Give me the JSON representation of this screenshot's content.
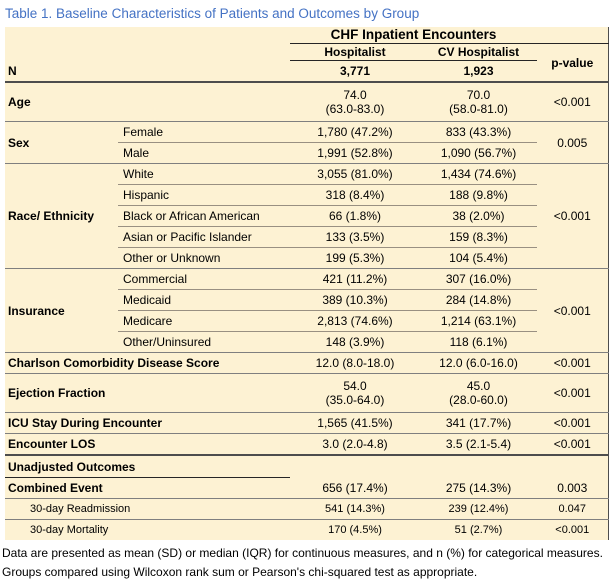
{
  "title": "Table 1. Baseline Characteristics of Patients and Outcomes by Group",
  "colors": {
    "title_blue": "#4472C4",
    "table_background": "#FDF2D3",
    "rule_gray": "#7f7f7f",
    "rule_dark": "#262626"
  },
  "footnote": "Data are presented as mean (SD) or median (IQR) for continuous measures, and n (%) for categorical measures. Groups compared using Wilcoxon rank sum or Pearson's chi-squared test as appropriate.",
  "table": {
    "column_group_header": "CHF Inpatient Encounters",
    "columns": [
      "Hospitalist",
      "CV Hospitalist",
      "p-value"
    ],
    "rows": [
      {
        "cls": "hrow",
        "cells": [
          {
            "t": "",
            "cs": 2,
            "c": "nb"
          },
          {
            "t": "CHF Inpatient Encounters",
            "cs": 2,
            "c": "chf bd"
          },
          {
            "t": "",
            "c": "bd"
          }
        ]
      },
      {
        "cls": "hrow",
        "cells": [
          {
            "t": "",
            "cs": 2,
            "c": "nb"
          },
          {
            "t": "Hospitalist",
            "c": "hdr bd"
          },
          {
            "t": "CV Hospitalist",
            "c": "hdr bd"
          },
          {
            "t": "p-value",
            "rs": 2,
            "c": "hdr b2"
          }
        ]
      },
      {
        "cells": [
          {
            "t": "N",
            "cs": 2,
            "c": "lbl b2"
          },
          {
            "t": "3,771",
            "c": "val bold b2"
          },
          {
            "t": "1,923",
            "c": "val bold b2"
          }
        ]
      },
      {
        "cls": "tall",
        "cells": [
          {
            "t": "Age",
            "cs": 2,
            "c": "lbl b1"
          },
          {
            "t": "74.0\n(63.0-83.0)",
            "c": "val b1"
          },
          {
            "t": "70.0\n(58.0-81.0)",
            "c": "val b1"
          },
          {
            "t": "<0.001",
            "c": "pv b1"
          }
        ]
      },
      {
        "cells": [
          {
            "t": "Sex",
            "rs": 2,
            "c": "lbl b1"
          },
          {
            "t": "Female",
            "c": "sub bt"
          },
          {
            "t": "1,780 (47.2%)",
            "c": "val bt"
          },
          {
            "t": "833 (43.3%)",
            "c": "val bt"
          },
          {
            "t": "0.005",
            "rs": 2,
            "c": "pv b1"
          }
        ]
      },
      {
        "cells": [
          {
            "t": "Male",
            "c": "sub b1"
          },
          {
            "t": "1,991 (52.8%)",
            "c": "val b1"
          },
          {
            "t": "1,090 (56.7%)",
            "c": "val b1"
          }
        ]
      },
      {
        "cells": [
          {
            "t": "Race/ Ethnicity",
            "rs": 5,
            "c": "lbl b1"
          },
          {
            "t": "White",
            "c": "sub bt"
          },
          {
            "t": "3,055 (81.0%)",
            "c": "val bt"
          },
          {
            "t": "1,434 (74.6%)",
            "c": "val bt"
          },
          {
            "t": "<0.001",
            "rs": 5,
            "c": "pv b1"
          }
        ]
      },
      {
        "cells": [
          {
            "t": "Hispanic",
            "c": "sub bt"
          },
          {
            "t": "318 (8.4%)",
            "c": "val bt"
          },
          {
            "t": "188 (9.8%)",
            "c": "val bt"
          }
        ]
      },
      {
        "cells": [
          {
            "t": "Black or African American",
            "c": "sub bt"
          },
          {
            "t": "66 (1.8%)",
            "c": "val bt"
          },
          {
            "t": "38 (2.0%)",
            "c": "val bt"
          }
        ]
      },
      {
        "cells": [
          {
            "t": "Asian or Pacific Islander",
            "c": "sub bt"
          },
          {
            "t": "133 (3.5%)",
            "c": "val bt"
          },
          {
            "t": "159 (8.3%)",
            "c": "val bt"
          }
        ]
      },
      {
        "cells": [
          {
            "t": "Other or Unknown",
            "c": "sub b1"
          },
          {
            "t": "199 (5.3%)",
            "c": "val b1"
          },
          {
            "t": "104 (5.4%)",
            "c": "val b1"
          }
        ]
      },
      {
        "cells": [
          {
            "t": "Insurance",
            "rs": 4,
            "c": "lbl b1"
          },
          {
            "t": "Commercial",
            "c": "sub bt"
          },
          {
            "t": "421 (11.2%)",
            "c": "val bt"
          },
          {
            "t": "307 (16.0%)",
            "c": "val bt"
          },
          {
            "t": "<0.001",
            "rs": 4,
            "c": "pv b1"
          }
        ]
      },
      {
        "cells": [
          {
            "t": "Medicaid",
            "c": "sub bt"
          },
          {
            "t": "389 (10.3%)",
            "c": "val bt"
          },
          {
            "t": "284 (14.8%)",
            "c": "val bt"
          }
        ]
      },
      {
        "cells": [
          {
            "t": "Medicare",
            "c": "sub bt"
          },
          {
            "t": "2,813 (74.6%)",
            "c": "val bt"
          },
          {
            "t": "1,214 (63.1%)",
            "c": "val bt"
          }
        ]
      },
      {
        "cells": [
          {
            "t": "Other/Uninsured",
            "c": "sub b1"
          },
          {
            "t": "148 (3.9%)",
            "c": "val b1"
          },
          {
            "t": "118 (6.1%)",
            "c": "val b1"
          }
        ]
      },
      {
        "cells": [
          {
            "t": "Charlson Comorbidity Disease Score",
            "cs": 2,
            "c": "lbl b1"
          },
          {
            "t": "12.0 (8.0-18.0)",
            "c": "val b1"
          },
          {
            "t": "12.0 (6.0-16.0)",
            "c": "val b1"
          },
          {
            "t": "<0.001",
            "c": "pv b1"
          }
        ]
      },
      {
        "cls": "tall",
        "cells": [
          {
            "t": "Ejection Fraction",
            "cs": 2,
            "c": "lbl b1"
          },
          {
            "t": "54.0\n(35.0-64.0)",
            "c": "val b1"
          },
          {
            "t": "45.0\n(28.0-60.0)",
            "c": "val b1"
          },
          {
            "t": "<0.001",
            "c": "pv b1"
          }
        ]
      },
      {
        "cells": [
          {
            "t": "ICU Stay During Encounter",
            "cs": 2,
            "c": "lbl b1"
          },
          {
            "t": "1,565 (41.5%)",
            "c": "val b1"
          },
          {
            "t": "341 (17.7%)",
            "c": "val b1"
          },
          {
            "t": "<0.001",
            "c": "pv b1"
          }
        ]
      },
      {
        "cells": [
          {
            "t": "Encounter LOS",
            "cs": 2,
            "c": "lbl b2"
          },
          {
            "t": "3.0 (2.0-4.8)",
            "c": "val b2"
          },
          {
            "t": "3.5 (2.1-5.4)",
            "c": "val b2"
          },
          {
            "t": "<0.001",
            "c": "pv b2"
          }
        ]
      },
      {
        "cls": "uorow",
        "cells": [
          {
            "t": "Unadjusted Outcomes",
            "cs": 2,
            "c": "lbl bd"
          },
          {
            "t": "",
            "c": "nb"
          },
          {
            "t": "",
            "c": "nb"
          },
          {
            "t": "",
            "c": "nb"
          }
        ]
      },
      {
        "cells": [
          {
            "t": "Combined Event",
            "cs": 2,
            "c": "lbl b1"
          },
          {
            "t": "656 (17.4%)",
            "c": "val b1"
          },
          {
            "t": "275 (14.3%)",
            "c": "val b1"
          },
          {
            "t": "0.003",
            "c": "pv b1"
          }
        ]
      },
      {
        "cells": [
          {
            "t": "30-day Readmission",
            "cs": 2,
            "c": "sub small indent b1"
          },
          {
            "t": "541 (14.3%)",
            "c": "val small b1"
          },
          {
            "t": "239 (12.4%)",
            "c": "val small b1"
          },
          {
            "t": "0.047",
            "c": "pv small b1"
          }
        ]
      },
      {
        "cells": [
          {
            "t": "30-day Mortality",
            "cs": 2,
            "c": "sub small indent nb"
          },
          {
            "t": "170 (4.5%)",
            "c": "val small nb"
          },
          {
            "t": "51 (2.7%)",
            "c": "val small nb"
          },
          {
            "t": "<0.001",
            "c": "pv small nb"
          }
        ]
      }
    ]
  }
}
